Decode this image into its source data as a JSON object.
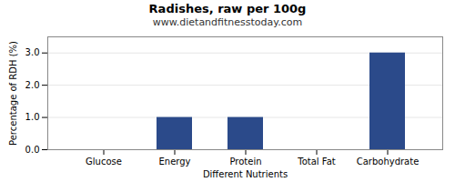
{
  "chart_data": {
    "type": "bar",
    "title": "Radishes, raw per 100g",
    "subtitle": "www.dietandfitnesstoday.com",
    "categories": [
      "Glucose",
      "Energy",
      "Protein",
      "Total Fat",
      "Carbohydrate"
    ],
    "values": [
      0.0,
      1.0,
      1.0,
      0.0,
      3.0
    ],
    "color": "#2b4a8a",
    "xlabel": "Different Nutrients",
    "ylabel": "Percentage of RDH (%)",
    "ylim": [
      0,
      3.5
    ],
    "yticks": [
      {
        "value": 0.0,
        "label": "0.0"
      },
      {
        "value": 1.0,
        "label": "1.0"
      },
      {
        "value": 2.0,
        "label": "2.0"
      },
      {
        "value": 3.0,
        "label": "3.0"
      }
    ],
    "grid": true
  }
}
